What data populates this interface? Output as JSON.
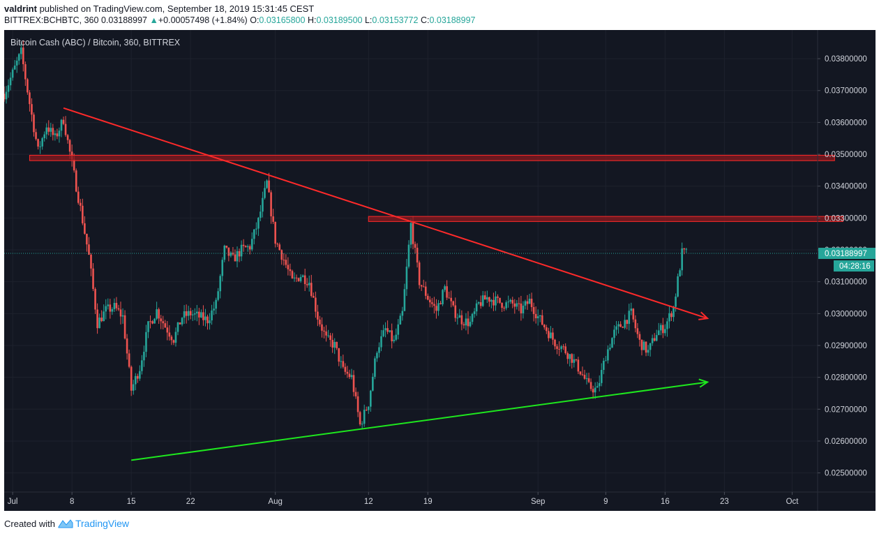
{
  "header": {
    "user": "valdrint",
    "published_text": " published on TradingView.com, September 18, 2019 15:31:45 CEST",
    "symbol": "BITTREX:BCHBTC, 360",
    "last": "0.03188997",
    "change_arrow": "▲",
    "change": "+0.00057498 (+1.84%)",
    "o_label": "O:",
    "o_value": "0.03165800",
    "h_label": "H:",
    "h_value": "0.03189500",
    "l_label": "L:",
    "l_value": "0.03153772",
    "c_label": "C:",
    "c_value": "0.03188997"
  },
  "footer": {
    "created_with": "Created with",
    "brand": "TradingView"
  },
  "colors": {
    "background": "#131722",
    "grid": "#1e222d",
    "axis_text": "#d1d4dc",
    "up_candle": "#26a69a",
    "down_candle": "#ef5350",
    "resistance_zone": "#8b1a1f",
    "resistance_border": "#ff2a2a",
    "descending_trendline": "#ff2a2a",
    "ascending_trendline": "#1ee81e",
    "price_label": "#26a69a"
  },
  "chart_data": {
    "type": "candlestick",
    "title": "Bitcoin Cash (ABC) / Bitcoin, 360, BITTREX",
    "price_labels": [
      "0.03800000",
      "0.03700000",
      "0.03600000",
      "0.03500000",
      "0.03400000",
      "0.03300000",
      "0.03200000",
      "0.03100000",
      "0.03000000",
      "0.02900000",
      "0.02800000",
      "0.02700000",
      "0.02600000",
      "0.02500000"
    ],
    "ylim": [
      0.0244,
      0.0389
    ],
    "date_range": [
      "2019-06-30",
      "2019-10-04"
    ],
    "x_ticks": [
      {
        "label": "Jul",
        "date": "2019-07-01"
      },
      {
        "label": "8",
        "date": "2019-07-08"
      },
      {
        "label": "15",
        "date": "2019-07-15"
      },
      {
        "label": "22",
        "date": "2019-07-22"
      },
      {
        "label": "Aug",
        "date": "2019-08-01"
      },
      {
        "label": "12",
        "date": "2019-08-12"
      },
      {
        "label": "19",
        "date": "2019-08-19"
      },
      {
        "label": "Sep",
        "date": "2019-09-01"
      },
      {
        "label": "9",
        "date": "2019-09-09"
      },
      {
        "label": "16",
        "date": "2019-09-16"
      },
      {
        "label": "23",
        "date": "2019-09-23"
      },
      {
        "label": "Oct",
        "date": "2019-10-01"
      }
    ],
    "close_path": [
      {
        "date": "2019-06-30",
        "price": 0.0369
      },
      {
        "date": "2019-07-02",
        "price": 0.0382
      },
      {
        "date": "2019-07-03",
        "price": 0.0366
      },
      {
        "date": "2019-07-04",
        "price": 0.0351
      },
      {
        "date": "2019-07-05",
        "price": 0.0359
      },
      {
        "date": "2019-07-06",
        "price": 0.0355
      },
      {
        "date": "2019-07-07",
        "price": 0.0361
      },
      {
        "date": "2019-07-08",
        "price": 0.0347
      },
      {
        "date": "2019-07-09",
        "price": 0.0333
      },
      {
        "date": "2019-07-10",
        "price": 0.0318
      },
      {
        "date": "2019-07-11",
        "price": 0.0297
      },
      {
        "date": "2019-07-12",
        "price": 0.0301
      },
      {
        "date": "2019-07-13",
        "price": 0.0302
      },
      {
        "date": "2019-07-14",
        "price": 0.0299
      },
      {
        "date": "2019-07-15",
        "price": 0.0276
      },
      {
        "date": "2019-07-16",
        "price": 0.0283
      },
      {
        "date": "2019-07-17",
        "price": 0.0296
      },
      {
        "date": "2019-07-18",
        "price": 0.0301
      },
      {
        "date": "2019-07-19",
        "price": 0.0296
      },
      {
        "date": "2019-07-20",
        "price": 0.0292
      },
      {
        "date": "2019-07-21",
        "price": 0.0299
      },
      {
        "date": "2019-07-22",
        "price": 0.03
      },
      {
        "date": "2019-07-24",
        "price": 0.0298
      },
      {
        "date": "2019-07-25",
        "price": 0.0303
      },
      {
        "date": "2019-07-26",
        "price": 0.032
      },
      {
        "date": "2019-07-27",
        "price": 0.0317
      },
      {
        "date": "2019-07-28",
        "price": 0.032
      },
      {
        "date": "2019-07-29",
        "price": 0.0321
      },
      {
        "date": "2019-07-30",
        "price": 0.0329
      },
      {
        "date": "2019-07-31",
        "price": 0.0341
      },
      {
        "date": "2019-08-01",
        "price": 0.0323
      },
      {
        "date": "2019-08-02",
        "price": 0.0317
      },
      {
        "date": "2019-08-03",
        "price": 0.031
      },
      {
        "date": "2019-08-04",
        "price": 0.0312
      },
      {
        "date": "2019-08-05",
        "price": 0.031
      },
      {
        "date": "2019-08-06",
        "price": 0.0299
      },
      {
        "date": "2019-08-07",
        "price": 0.0292
      },
      {
        "date": "2019-08-08",
        "price": 0.029
      },
      {
        "date": "2019-08-09",
        "price": 0.0282
      },
      {
        "date": "2019-08-10",
        "price": 0.028
      },
      {
        "date": "2019-08-11",
        "price": 0.0265
      },
      {
        "date": "2019-08-12",
        "price": 0.0272
      },
      {
        "date": "2019-08-13",
        "price": 0.0289
      },
      {
        "date": "2019-08-14",
        "price": 0.0295
      },
      {
        "date": "2019-08-15",
        "price": 0.0291
      },
      {
        "date": "2019-08-16",
        "price": 0.03
      },
      {
        "date": "2019-08-17",
        "price": 0.0328
      },
      {
        "date": "2019-08-18",
        "price": 0.031
      },
      {
        "date": "2019-08-19",
        "price": 0.0305
      },
      {
        "date": "2019-08-20",
        "price": 0.0301
      },
      {
        "date": "2019-08-21",
        "price": 0.0308
      },
      {
        "date": "2019-08-22",
        "price": 0.0301
      },
      {
        "date": "2019-08-23",
        "price": 0.0298
      },
      {
        "date": "2019-08-24",
        "price": 0.0297
      },
      {
        "date": "2019-08-25",
        "price": 0.0303
      },
      {
        "date": "2019-08-26",
        "price": 0.0305
      },
      {
        "date": "2019-08-27",
        "price": 0.0304
      },
      {
        "date": "2019-08-28",
        "price": 0.0303
      },
      {
        "date": "2019-08-29",
        "price": 0.0303
      },
      {
        "date": "2019-08-30",
        "price": 0.0301
      },
      {
        "date": "2019-08-31",
        "price": 0.0304
      },
      {
        "date": "2019-09-01",
        "price": 0.0299
      },
      {
        "date": "2019-09-02",
        "price": 0.0295
      },
      {
        "date": "2019-09-03",
        "price": 0.0291
      },
      {
        "date": "2019-09-04",
        "price": 0.0289
      },
      {
        "date": "2019-09-05",
        "price": 0.0286
      },
      {
        "date": "2019-09-06",
        "price": 0.0282
      },
      {
        "date": "2019-09-07",
        "price": 0.0277
      },
      {
        "date": "2019-09-08",
        "price": 0.0276
      },
      {
        "date": "2019-09-09",
        "price": 0.0287
      },
      {
        "date": "2019-09-10",
        "price": 0.0294
      },
      {
        "date": "2019-09-11",
        "price": 0.0297
      },
      {
        "date": "2019-09-12",
        "price": 0.03
      },
      {
        "date": "2019-09-13",
        "price": 0.0291
      },
      {
        "date": "2019-09-14",
        "price": 0.0288
      },
      {
        "date": "2019-09-15",
        "price": 0.0294
      },
      {
        "date": "2019-09-16",
        "price": 0.0296
      },
      {
        "date": "2019-09-17",
        "price": 0.0302
      },
      {
        "date": "2019-09-18",
        "price": 0.0319
      }
    ],
    "resistance_zones": [
      {
        "date_start": "2019-07-03",
        "date_end": "2019-10-06",
        "low": 0.0348,
        "high": 0.03497
      },
      {
        "date_start": "2019-08-12",
        "date_end": "2019-10-07",
        "low": 0.03289,
        "high": 0.03305
      }
    ],
    "trendlines": [
      {
        "name": "descending",
        "start": {
          "date": "2019-07-07",
          "price": 0.03645
        },
        "end": {
          "date": "2019-09-21",
          "price": 0.02985
        },
        "arrow": true
      },
      {
        "name": "ascending",
        "start": {
          "date": "2019-07-15",
          "price": 0.0254
        },
        "end": {
          "date": "2019-09-21",
          "price": 0.02785
        },
        "arrow": true
      }
    ],
    "last_price": {
      "price": 0.03188997,
      "label": "0.03188997",
      "countdown": "04:28:16"
    }
  }
}
